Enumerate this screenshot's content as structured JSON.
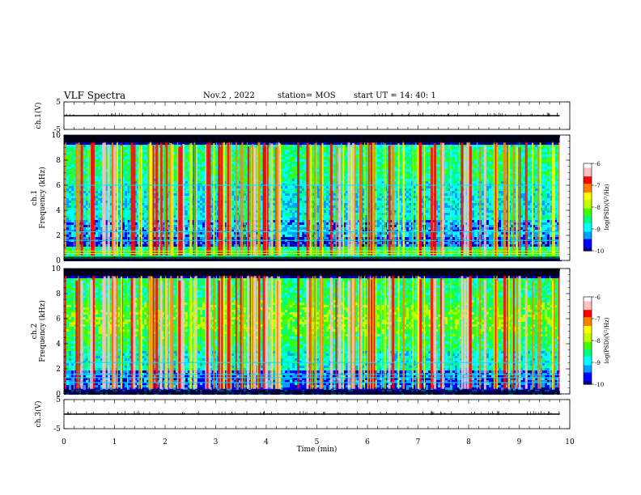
{
  "header": {
    "title": "VLF Spectra",
    "date": "Nov.2 , 2022",
    "station": "station= MOS",
    "start_ut": "start UT = 14: 40: 1"
  },
  "chart_data": [
    {
      "type": "line",
      "name": "ch1-waveform",
      "ylabel": "ch.1(V)",
      "ylim": [
        -5,
        5
      ],
      "y_ticks": [
        "5",
        "-5"
      ],
      "xlim": [
        0,
        10
      ],
      "trace_level": 0
    },
    {
      "type": "heatmap",
      "name": "ch1-spectrogram",
      "ylabel": "ch.1\nFrequency (kHz)",
      "ylim": [
        0,
        10
      ],
      "y_ticks": [
        "0",
        "2",
        "4",
        "6",
        "8",
        "10"
      ],
      "xlim": [
        0,
        10
      ],
      "data_extent_min": 9.8,
      "colorbar": {
        "label": "log(PSD)(V²/Hz)",
        "range": [
          -10,
          -6
        ],
        "ticks": [
          "-6",
          "-7",
          "-8",
          "-9",
          "-10"
        ]
      }
    },
    {
      "type": "heatmap",
      "name": "ch2-spectrogram",
      "ylabel": "ch.2\nFrequency (kHz)",
      "ylim": [
        0,
        10
      ],
      "y_ticks": [
        "0",
        "2",
        "4",
        "6",
        "8",
        "10"
      ],
      "xlim": [
        0,
        10
      ],
      "data_extent_min": 9.8,
      "colorbar": {
        "label": "log(PSD)(V²/Hz)",
        "range": [
          -10,
          -6
        ],
        "ticks": [
          "-6",
          "-7",
          "-8",
          "-9",
          "-10"
        ]
      }
    },
    {
      "type": "line",
      "name": "ch3-waveform",
      "ylabel": "ch.3(V)",
      "ylim": [
        -5,
        5
      ],
      "y_ticks": [
        "5",
        "-5"
      ],
      "xlim": [
        0,
        10
      ],
      "trace_level": 0
    }
  ],
  "x_axis": {
    "label": "Time (min)",
    "ticks": [
      "0",
      "1",
      "2",
      "3",
      "4",
      "5",
      "6",
      "7",
      "8",
      "9",
      "10"
    ]
  },
  "colormap": [
    "#000080",
    "#0000ff",
    "#00a0ff",
    "#00ffff",
    "#00ff80",
    "#40ff00",
    "#c0ff00",
    "#ffff00",
    "#ff8000",
    "#ff0000",
    "#ffc0c0",
    "#ffffff"
  ]
}
